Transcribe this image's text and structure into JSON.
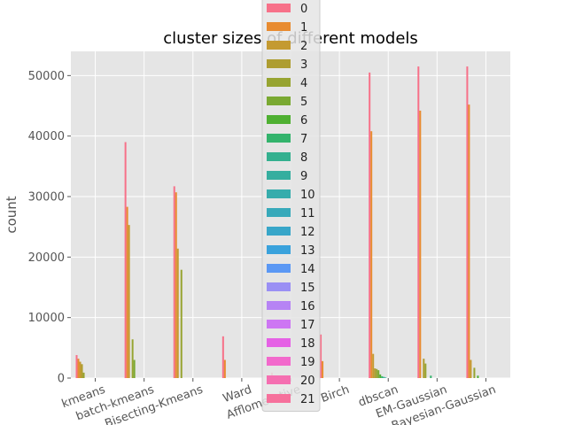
{
  "chart_data": {
    "type": "bar",
    "title": "cluster sizes of different models",
    "xlabel": "",
    "ylabel": "count",
    "ylim": [
      0,
      54000
    ],
    "yticks": [
      0,
      10000,
      20000,
      30000,
      40000,
      50000
    ],
    "grid": true,
    "legend_position": "top-center",
    "categories": [
      "kmeans",
      "batch-kmeans",
      "Bisecting-Kmeans",
      "Ward",
      "Afflomerative",
      "Birch",
      "dbscan",
      "EM-Gaussian",
      "Bayesian-Gaussian"
    ],
    "series_colors": [
      "#f77189",
      "#e88b30",
      "#c49a31",
      "#ae9d31",
      "#97a431",
      "#7aa932",
      "#4fb032",
      "#33b36c",
      "#34b08f",
      "#35ae9f",
      "#36acac",
      "#37a9ba",
      "#38a6c9",
      "#3aa2dc",
      "#5b98f4",
      "#9a8ff4",
      "#b683f4",
      "#cd76f3",
      "#e561e5",
      "#f269cc",
      "#f56fb1",
      "#f6719c"
    ],
    "series": [
      {
        "name": "0",
        "values": [
          3800,
          39000,
          31700,
          6900,
          900,
          7200,
          50500,
          51500,
          51500
        ]
      },
      {
        "name": "1",
        "values": [
          3200,
          28300,
          30700,
          3000,
          0,
          2800,
          40800,
          44200,
          45200
        ]
      },
      {
        "name": "2",
        "values": [
          2700,
          25300,
          21400,
          0,
          0,
          0,
          4000,
          0,
          3000
        ]
      },
      {
        "name": "3",
        "values": [
          2300,
          0,
          0,
          0,
          0,
          0,
          1600,
          3200,
          0
        ]
      },
      {
        "name": "4",
        "values": [
          900,
          6400,
          17900,
          0,
          0,
          0,
          1500,
          2400,
          1700
        ]
      },
      {
        "name": "5",
        "values": [
          0,
          3000,
          0,
          0,
          0,
          0,
          1300,
          0,
          0
        ]
      },
      {
        "name": "6",
        "values": [
          0,
          0,
          0,
          0,
          0,
          0,
          600,
          0,
          400
        ]
      },
      {
        "name": "7",
        "values": [
          0,
          0,
          0,
          0,
          0,
          0,
          300,
          400,
          0
        ]
      },
      {
        "name": "8",
        "values": [
          0,
          0,
          0,
          0,
          0,
          0,
          200,
          0,
          0
        ]
      },
      {
        "name": "9",
        "values": [
          0,
          0,
          0,
          0,
          0,
          0,
          100,
          0,
          0
        ]
      },
      {
        "name": "10",
        "values": [
          0,
          0,
          0,
          0,
          0,
          0,
          0,
          0,
          0
        ]
      },
      {
        "name": "11",
        "values": [
          0,
          0,
          0,
          0,
          0,
          0,
          0,
          0,
          0
        ]
      },
      {
        "name": "12",
        "values": [
          0,
          0,
          0,
          0,
          0,
          0,
          0,
          0,
          0
        ]
      },
      {
        "name": "13",
        "values": [
          0,
          0,
          0,
          0,
          0,
          0,
          0,
          0,
          0
        ]
      },
      {
        "name": "14",
        "values": [
          0,
          0,
          0,
          0,
          0,
          0,
          0,
          0,
          0
        ]
      },
      {
        "name": "15",
        "values": [
          0,
          0,
          0,
          0,
          0,
          0,
          0,
          0,
          0
        ]
      },
      {
        "name": "16",
        "values": [
          0,
          0,
          0,
          0,
          0,
          0,
          0,
          0,
          0
        ]
      },
      {
        "name": "17",
        "values": [
          0,
          0,
          0,
          0,
          0,
          0,
          0,
          0,
          0
        ]
      },
      {
        "name": "18",
        "values": [
          0,
          0,
          0,
          0,
          0,
          0,
          0,
          0,
          0
        ]
      },
      {
        "name": "19",
        "values": [
          0,
          0,
          0,
          0,
          0,
          0,
          0,
          0,
          0
        ]
      },
      {
        "name": "20",
        "values": [
          0,
          0,
          0,
          0,
          0,
          0,
          0,
          0,
          0
        ]
      },
      {
        "name": "21",
        "values": [
          0,
          0,
          0,
          0,
          0,
          0,
          0,
          0,
          0
        ]
      }
    ]
  }
}
